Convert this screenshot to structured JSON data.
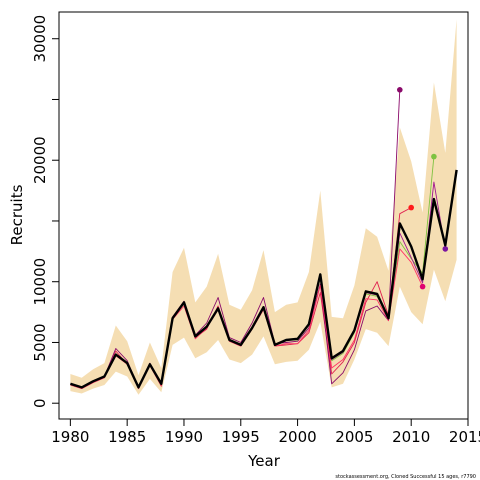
{
  "chart_data": {
    "type": "line",
    "xlabel": "Year",
    "ylabel": "Recruits",
    "xlim": [
      1979,
      2015
    ],
    "ylim": [
      -1300,
      32200
    ],
    "x_ticks": [
      1980,
      1985,
      1990,
      1995,
      2000,
      2005,
      2010,
      2015
    ],
    "x_tick_labels": [
      "1980",
      "1985",
      "1990",
      "1995",
      "2000",
      "2005",
      "2010",
      "2015"
    ],
    "y_ticks": [
      0,
      5000,
      10000,
      15000,
      20000,
      25000,
      30000
    ],
    "y_tick_labels": [
      "0",
      "5000",
      "10000",
      "",
      "20000",
      "",
      "30000"
    ],
    "grid": false,
    "band": {
      "color": "#f5deb3",
      "x": [
        1980,
        1981,
        1982,
        1983,
        1984,
        1985,
        1986,
        1987,
        1988,
        1989,
        1990,
        1991,
        1992,
        1993,
        1994,
        1995,
        1996,
        1997,
        1998,
        1999,
        2000,
        2001,
        2002,
        2003,
        2004,
        2005,
        2006,
        2007,
        2008,
        2009,
        2010,
        2011,
        2012,
        2013,
        2014
      ],
      "upper": [
        2400,
        2100,
        2800,
        3300,
        6400,
        5100,
        2300,
        5000,
        2900,
        10800,
        12800,
        8300,
        9600,
        12300,
        8100,
        7700,
        9300,
        12600,
        7500,
        8100,
        8300,
        10800,
        17500,
        7100,
        7000,
        9700,
        14400,
        13700,
        10900,
        22700,
        19900,
        15700,
        26400,
        20600,
        31600
      ],
      "lower": [
        1000,
        800,
        1200,
        1500,
        2600,
        2200,
        700,
        2000,
        900,
        4800,
        5400,
        3700,
        4200,
        5200,
        3600,
        3300,
        4000,
        5500,
        3200,
        3400,
        3500,
        4400,
        6700,
        1300,
        1600,
        3600,
        6100,
        5800,
        4700,
        9600,
        7500,
        6500,
        11000,
        8400,
        11800
      ]
    },
    "series": [
      {
        "color": "#000000",
        "emphasis": true,
        "x": [
          1980,
          1981,
          1982,
          1983,
          1984,
          1985,
          1986,
          1987,
          1988,
          1989,
          1990,
          1991,
          1992,
          1993,
          1994,
          1995,
          1996,
          1997,
          1998,
          1999,
          2000,
          2001,
          2002,
          2003,
          2004,
          2005,
          2006,
          2007,
          2008,
          2009,
          2010,
          2011,
          2012,
          2013,
          2014
        ],
        "values": [
          1600,
          1300,
          1800,
          2200,
          4000,
          3300,
          1300,
          3200,
          1600,
          7000,
          8300,
          5500,
          6300,
          7800,
          5200,
          4800,
          6200,
          7900,
          4800,
          5200,
          5300,
          6500,
          10600,
          3700,
          4300,
          6000,
          9200,
          9000,
          7000,
          14800,
          12900,
          10200,
          16800,
          13000,
          19200
        ]
      },
      {
        "color": "#e0204f",
        "x": [
          1980,
          1981,
          1982,
          1983,
          1984,
          1985,
          1986,
          1987,
          1988,
          1989,
          1990,
          1991,
          1992,
          1993,
          1994,
          1995,
          1996,
          1997,
          1998,
          1999,
          2000,
          2001,
          2002,
          2003,
          2004,
          2005,
          2006,
          2007,
          2008,
          2009,
          2010
        ],
        "values": [
          1500,
          1200,
          1700,
          2100,
          4300,
          3200,
          1200,
          3100,
          1400,
          7100,
          8200,
          5400,
          6100,
          8000,
          5100,
          4700,
          6100,
          7800,
          4700,
          4800,
          4900,
          5800,
          9100,
          2400,
          3400,
          5000,
          8300,
          10000,
          7200,
          15600,
          16100
        ],
        "end_marker": true,
        "marker_color": "#ff1a1a"
      },
      {
        "color": "#8a0a6a",
        "x": [
          1980,
          1981,
          1982,
          1983,
          1984,
          1985,
          1986,
          1987,
          1988,
          1989,
          1990,
          1991,
          1992,
          1993,
          1994,
          1995,
          1996,
          1997,
          1998,
          1999,
          2000,
          2001,
          2002,
          2003,
          2004,
          2005,
          2006,
          2007,
          2008,
          2009
        ],
        "values": [
          1600,
          1300,
          1800,
          2200,
          4500,
          3500,
          1300,
          3300,
          1600,
          7100,
          8400,
          5600,
          6600,
          8700,
          5400,
          5000,
          6600,
          8700,
          4900,
          5000,
          5100,
          6200,
          9800,
          1600,
          2500,
          4400,
          7600,
          8000,
          6800,
          25800
        ],
        "end_marker": true,
        "marker_color": "#8a0a6a"
      },
      {
        "color": "#7fc241",
        "x": [
          1980,
          1981,
          1982,
          1983,
          1984,
          1985,
          1986,
          1987,
          1988,
          1989,
          1990,
          1991,
          1992,
          1993,
          1994,
          1995,
          1996,
          1997,
          1998,
          1999,
          2000,
          2001,
          2002,
          2003,
          2004,
          2005,
          2006,
          2007,
          2008,
          2009,
          2010,
          2011,
          2012
        ],
        "values": [
          1600,
          1300,
          1800,
          2200,
          4000,
          3300,
          1300,
          3200,
          1600,
          7000,
          8200,
          5400,
          6300,
          7800,
          5200,
          4800,
          6200,
          7900,
          4800,
          5200,
          5200,
          6400,
          10400,
          3500,
          4100,
          5800,
          9000,
          8800,
          6900,
          13300,
          11900,
          10700,
          20300
        ],
        "end_marker": true,
        "marker_color": "#7fc241"
      },
      {
        "color": "#ff3366",
        "x": [
          1980,
          1981,
          1982,
          1983,
          1984,
          1985,
          1986,
          1987,
          1988,
          1989,
          1990,
          1991,
          1992,
          1993,
          1994,
          1995,
          1996,
          1997,
          1998,
          1999,
          2000,
          2001,
          2002,
          2003,
          2004,
          2005,
          2006,
          2007,
          2008,
          2009,
          2010,
          2011
        ],
        "values": [
          1500,
          1200,
          1700,
          2100,
          3900,
          3200,
          1200,
          3100,
          1500,
          6900,
          8000,
          5300,
          6200,
          7700,
          5100,
          4700,
          6100,
          7700,
          4700,
          4900,
          4900,
          6000,
          9700,
          2900,
          3600,
          5200,
          8600,
          8500,
          6800,
          12700,
          11600,
          9600
        ],
        "end_marker": true,
        "marker_color": "#e00070"
      },
      {
        "color": "#a01890",
        "x": [
          1980,
          1981,
          1982,
          1983,
          1984,
          1985,
          1986,
          1987,
          1988,
          1989,
          1990,
          1991,
          1992,
          1993,
          1994,
          1995,
          1996,
          1997,
          1998,
          1999,
          2000,
          2001,
          2002,
          2003,
          2004,
          2005,
          2006,
          2007,
          2008,
          2009,
          2010,
          2011,
          2012,
          2013
        ],
        "values": [
          1600,
          1300,
          1800,
          2200,
          4000,
          3300,
          1300,
          3200,
          1600,
          7000,
          8300,
          5500,
          6300,
          7800,
          5200,
          4800,
          6200,
          7900,
          4800,
          5200,
          5300,
          6500,
          10500,
          3600,
          4200,
          5900,
          9100,
          8900,
          6900,
          14000,
          12000,
          9900,
          18200,
          12700
        ],
        "end_marker": true,
        "marker_color": "#7a14a0"
      }
    ],
    "caption": "stockassessment.org, Cloned Successful 15 ages, r7790"
  },
  "colors": {
    "background": "#ffffff",
    "band": "#f5deb3",
    "axis": "#000000"
  }
}
